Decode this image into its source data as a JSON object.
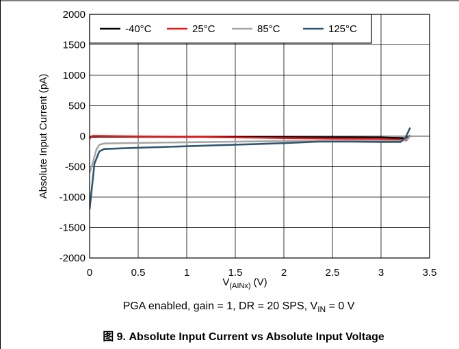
{
  "chart_data": {
    "type": "line",
    "title": "",
    "xlabel": "V",
    "xlabel_sub": "(AINx)",
    "xlabel_unit": " (V)",
    "ylabel": "Absolute Input Current (pA)",
    "xlim": [
      0,
      3.5
    ],
    "ylim": [
      -2000,
      2000
    ],
    "x_ticks": [
      0,
      0.5,
      1,
      1.5,
      2,
      2.5,
      3,
      3.5
    ],
    "y_ticks": [
      -2000,
      -1500,
      -1000,
      -500,
      0,
      500,
      1000,
      1500,
      2000
    ],
    "x_tick_labels": [
      "0",
      "0.5",
      "1",
      "1.5",
      "2",
      "2.5",
      "3",
      "3.5"
    ],
    "y_tick_labels": [
      "-2000",
      "-1500",
      "-1000",
      "-500",
      "0",
      "500",
      "1000",
      "1500",
      "2000"
    ],
    "grid": true,
    "legend_position": "top",
    "series": [
      {
        "name": "-40°C",
        "color": "#000000",
        "points": [
          [
            0,
            -15
          ],
          [
            0.03,
            -10
          ],
          [
            0.1,
            -8
          ],
          [
            0.5,
            -10
          ],
          [
            1.0,
            -12
          ],
          [
            1.5,
            -15
          ],
          [
            2.0,
            -18
          ],
          [
            2.5,
            -20
          ],
          [
            3.0,
            -22
          ],
          [
            3.22,
            -30
          ],
          [
            3.26,
            -40
          ],
          [
            3.3,
            10
          ]
        ]
      },
      {
        "name": "25°C",
        "color": "#e31a1c",
        "points": [
          [
            0,
            -40
          ],
          [
            0.03,
            5
          ],
          [
            0.1,
            5
          ],
          [
            0.3,
            0
          ],
          [
            0.5,
            -5
          ],
          [
            1.0,
            -10
          ],
          [
            1.5,
            -20
          ],
          [
            2.0,
            -30
          ],
          [
            2.5,
            -40
          ],
          [
            3.0,
            -45
          ],
          [
            3.2,
            -60
          ],
          [
            3.26,
            -70
          ],
          [
            3.3,
            0
          ]
        ]
      },
      {
        "name": "85°C",
        "color": "#a6a6a6",
        "points": [
          [
            0,
            -600
          ],
          [
            0.03,
            -450
          ],
          [
            0.07,
            -220
          ],
          [
            0.1,
            -140
          ],
          [
            0.15,
            -120
          ],
          [
            0.5,
            -110
          ],
          [
            1.0,
            -100
          ],
          [
            1.5,
            -90
          ],
          [
            2.0,
            -80
          ],
          [
            2.5,
            -75
          ],
          [
            3.0,
            -75
          ],
          [
            3.2,
            -80
          ],
          [
            3.26,
            -60
          ],
          [
            3.3,
            0
          ]
        ]
      },
      {
        "name": "125°C",
        "color": "#2f5670",
        "points": [
          [
            0,
            -1200
          ],
          [
            0.02,
            -900
          ],
          [
            0.05,
            -450
          ],
          [
            0.1,
            -250
          ],
          [
            0.15,
            -210
          ],
          [
            0.5,
            -190
          ],
          [
            1.0,
            -165
          ],
          [
            1.5,
            -140
          ],
          [
            2.0,
            -115
          ],
          [
            2.35,
            -90
          ],
          [
            2.7,
            -90
          ],
          [
            3.0,
            -95
          ],
          [
            3.2,
            -95
          ],
          [
            3.25,
            -30
          ],
          [
            3.3,
            140
          ]
        ]
      }
    ]
  },
  "note": {
    "prefix": "PGA enabled, gain = 1, DR = 20 SPS, V",
    "sub": "IN",
    "suffix": " = 0 V"
  },
  "caption": "图 9. Absolute Input Current vs Absolute Input Voltage"
}
